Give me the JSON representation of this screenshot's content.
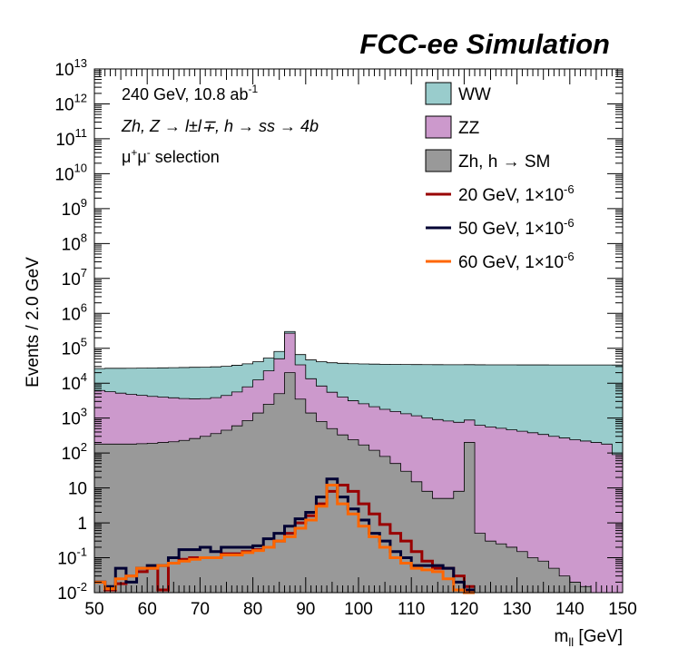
{
  "chart_data": {
    "type": "histogram",
    "header": "FCC-ee Simulation",
    "xlabel": "m_ll [GeV]",
    "xlabel_main": "m",
    "xlabel_sub": "ll",
    "xlabel_unit": " [GeV]",
    "ylabel": "Events / 2.0 GeV",
    "xlim": [
      50,
      150
    ],
    "ylim": [
      0.01,
      10000000000000.0
    ],
    "yscale": "log",
    "x_ticks": [
      "50",
      "60",
      "70",
      "80",
      "90",
      "100",
      "110",
      "120",
      "130",
      "140",
      "150"
    ],
    "y_ticks": [
      {
        "value": 0.01,
        "base": "10",
        "exp": "-2"
      },
      {
        "value": 0.1,
        "base": "10",
        "exp": "-1"
      },
      {
        "value": 1,
        "base": "1",
        "exp": ""
      },
      {
        "value": 10,
        "base": "10",
        "exp": ""
      },
      {
        "value": 100,
        "base": "10",
        "exp": "2"
      },
      {
        "value": 1000,
        "base": "10",
        "exp": "3"
      },
      {
        "value": 10000,
        "base": "10",
        "exp": "4"
      },
      {
        "value": 100000,
        "base": "10",
        "exp": "5"
      },
      {
        "value": 1000000,
        "base": "10",
        "exp": "6"
      },
      {
        "value": 10000000,
        "base": "10",
        "exp": "7"
      },
      {
        "value": 100000000,
        "base": "10",
        "exp": "8"
      },
      {
        "value": 1000000000,
        "base": "10",
        "exp": "9"
      },
      {
        "value": 10000000000,
        "base": "10",
        "exp": "10"
      },
      {
        "value": 100000000000,
        "base": "10",
        "exp": "11"
      },
      {
        "value": 1000000000000,
        "base": "10",
        "exp": "12"
      },
      {
        "value": 10000000000000,
        "base": "10",
        "exp": "13"
      }
    ],
    "bin_edges_start": 50,
    "bin_width": 2,
    "annotations": {
      "line1_main": "240 GeV, 10.8 ab",
      "line1_sup": "-1",
      "line2": "Zh, Z → l±l∓, h → ss → 4b",
      "line3_a": "μ",
      "line3_sup1": "+",
      "line3_b": "μ",
      "line3_sup2": "-",
      "line3_c": " selection"
    },
    "stacked": [
      {
        "name": "Zh, h → SM",
        "color": "#999999",
        "values": [
          180,
          180,
          180,
          180,
          185,
          190,
          200,
          210,
          230,
          260,
          300,
          360,
          450,
          600,
          850,
          1400,
          2500,
          5000,
          20000,
          3500,
          1400,
          800,
          500,
          330,
          240,
          170,
          120,
          80,
          50,
          30,
          15,
          8,
          5,
          5,
          8,
          200,
          0.5,
          0.3,
          0.25,
          0.2,
          0.15,
          0.1,
          0.08,
          0.05,
          0.03,
          0.02,
          0.015,
          0.01,
          0.008,
          0.005
        ]
      },
      {
        "name": "ZZ",
        "color": "#CC99CC",
        "values": [
          6000,
          5500,
          5000,
          4600,
          4300,
          4000,
          3800,
          3600,
          3400,
          3300,
          3300,
          3500,
          4000,
          5000,
          7000,
          11000,
          20000,
          45000,
          250000,
          30000,
          12000,
          7500,
          5000,
          3700,
          2900,
          2400,
          2000,
          1700,
          1500,
          1300,
          1150,
          1000,
          900,
          820,
          750,
          680,
          620,
          560,
          510,
          460,
          420,
          380,
          340,
          300,
          270,
          240,
          220,
          200,
          180,
          90
        ]
      },
      {
        "name": "WW",
        "color": "#99CCCC",
        "values": [
          20000,
          21000,
          21500,
          22000,
          22500,
          23000,
          23500,
          24000,
          24500,
          25000,
          25000,
          25500,
          26000,
          27000,
          28000,
          29000,
          30000,
          31000,
          32000,
          32500,
          33000,
          33000,
          33000,
          33000,
          33000,
          33000,
          33000,
          33000,
          33000,
          33000,
          33000,
          33000,
          33000,
          33000,
          33000,
          33000,
          33000,
          33000,
          33000,
          33000,
          33000,
          33000,
          33000,
          33000,
          33000,
          33000,
          33000,
          33000,
          33000,
          33000
        ]
      }
    ],
    "legend": [
      {
        "label": "WW",
        "kind": "box",
        "color": "#99CCCC"
      },
      {
        "label": "ZZ",
        "kind": "box",
        "color": "#CC99CC"
      },
      {
        "label": "Zh, h → SM",
        "kind": "box",
        "color": "#999999"
      },
      {
        "label": "20 GeV, 1×10",
        "sup": "-6",
        "kind": "line",
        "color": "#990000"
      },
      {
        "label": "50 GeV, 1×10",
        "sup": "-6",
        "kind": "line",
        "color": "#000033"
      },
      {
        "label": "60 GeV, 1×10",
        "sup": "-6",
        "kind": "line",
        "color": "#FF6600"
      }
    ],
    "signals": [
      {
        "name": "20 GeV, 1×10^-6",
        "color": "#990000",
        "values": [
          0.02,
          0.012,
          0.018,
          0.03,
          0.04,
          0.05,
          0.012,
          0.07,
          0.09,
          0.1,
          0.1,
          0.1,
          0.13,
          0.13,
          0.15,
          0.17,
          0.2,
          0.3,
          0.5,
          1.0,
          1.6,
          3.5,
          8,
          12,
          8,
          3.5,
          1.8,
          0.9,
          0.5,
          0.3,
          0.15,
          0.08,
          0.05,
          0.05,
          0.03,
          0.015
        ]
      },
      {
        "name": "50 GeV, 1×10^-6",
        "color": "#000033",
        "values": [
          0.02,
          0.015,
          0.05,
          0.02,
          0.05,
          0.06,
          0.06,
          0.1,
          0.17,
          0.17,
          0.2,
          0.15,
          0.2,
          0.2,
          0.2,
          0.22,
          0.35,
          0.5,
          0.8,
          1.3,
          2.0,
          5.5,
          18,
          5.5,
          2.5,
          1.2,
          0.5,
          0.3,
          0.15,
          0.1,
          0.06,
          0.06,
          0.06,
          0.05,
          0.02,
          0.012
        ]
      },
      {
        "name": "60 GeV, 1×10^-6",
        "color": "#FF6600",
        "values": [
          0.02,
          0.013,
          0.025,
          0.03,
          0.05,
          0.05,
          0.06,
          0.07,
          0.08,
          0.09,
          0.1,
          0.1,
          0.12,
          0.12,
          0.14,
          0.16,
          0.2,
          0.3,
          0.4,
          0.7,
          1.2,
          3.0,
          12,
          3.5,
          1.8,
          0.8,
          0.4,
          0.2,
          0.1,
          0.07,
          0.05,
          0.045,
          0.04,
          0.025,
          0.012,
          0.01
        ]
      }
    ]
  }
}
